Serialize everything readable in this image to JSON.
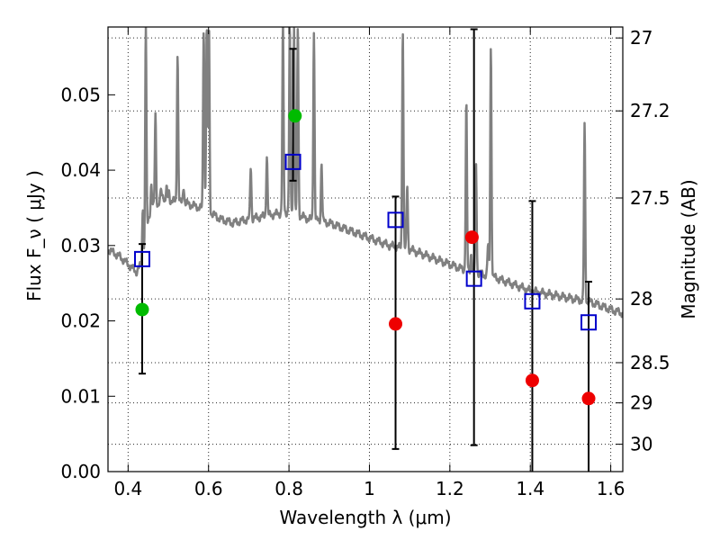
{
  "chart_data": {
    "type": "scatter",
    "xlabel": "Wavelength λ (μm)",
    "ylabel": "Flux F_ν ( μJy )",
    "ylabel_right": "Magnitude (AB)",
    "xlim": [
      0.35,
      1.63
    ],
    "ylim": [
      0.0,
      0.059
    ],
    "x_ticks": [
      0.4,
      0.6,
      0.8,
      1.0,
      1.2,
      1.4,
      1.6
    ],
    "x_tick_labels": [
      "0.4",
      "0.6",
      "0.8",
      "1",
      "1.2",
      "1.4",
      "1.6"
    ],
    "y_ticks": [
      0.0,
      0.01,
      0.02,
      0.03,
      0.04,
      0.05
    ],
    "y_tick_labels": [
      "0.00",
      "0.01",
      "0.02",
      "0.03",
      "0.04",
      "0.05"
    ],
    "right_ticks": [
      27,
      27.2,
      27.5,
      28,
      28.5,
      29,
      30
    ],
    "right_tick_labels": [
      "27",
      "27.2",
      "27.5",
      "28",
      "28.5",
      "29",
      "30"
    ],
    "grid": true,
    "colors": {
      "model": "#808080",
      "model_photometry": "#0000cc",
      "detection": "#00bb00",
      "nondetection": "#ee0000",
      "errorbar": "#000000"
    },
    "series": [
      {
        "marker": "open-square",
        "x": [
          0.435,
          0.81,
          1.065,
          1.26,
          1.405,
          1.545
        ],
        "y": [
          0.0282,
          0.0411,
          0.0334,
          0.0256,
          0.0226,
          0.0198
        ],
        "yerr_low": [
          0.013,
          0.0386,
          0.003,
          0.0035,
          null,
          null
        ],
        "yerr_high": [
          0.0302,
          0.0561,
          0.0365,
          0.0587,
          0.0359,
          0.0252
        ]
      },
      {
        "marker": "filled-circle-green",
        "x": [
          0.435,
          0.815
        ],
        "y": [
          0.0215,
          0.0472
        ]
      },
      {
        "marker": "filled-circle-red",
        "x": [
          1.065,
          1.255,
          1.405,
          1.545
        ],
        "y": [
          0.0196,
          0.0311,
          0.0121,
          0.0097
        ]
      }
    ],
    "model_continuum": {
      "x": [
        0.35,
        0.38,
        0.4,
        0.42,
        0.44,
        0.45,
        0.46,
        0.48,
        0.5,
        0.52,
        0.55,
        0.58,
        0.6,
        0.63,
        0.66,
        0.7,
        0.75,
        0.8,
        0.85,
        0.9,
        0.95,
        1.0,
        1.05,
        1.1,
        1.15,
        1.2,
        1.25,
        1.3,
        1.35,
        1.4,
        1.45,
        1.5,
        1.55,
        1.6,
        1.63
      ],
      "y": [
        0.0295,
        0.0285,
        0.0275,
        0.0265,
        0.028,
        0.0335,
        0.035,
        0.0355,
        0.036,
        0.0358,
        0.0355,
        0.035,
        0.0345,
        0.0335,
        0.033,
        0.0335,
        0.034,
        0.0345,
        0.0335,
        0.033,
        0.032,
        0.031,
        0.03,
        0.0295,
        0.0285,
        0.0275,
        0.0265,
        0.026,
        0.025,
        0.024,
        0.0235,
        0.023,
        0.0225,
        0.0215,
        0.021
      ]
    },
    "model_lines": [
      {
        "x": 0.391,
        "peak": 0.0255
      },
      {
        "x": 0.437,
        "peak": 0.03
      },
      {
        "x": 0.4365,
        "peak": 0.033
      },
      {
        "x": 0.444,
        "peak": 0.059
      },
      {
        "x": 0.4575,
        "peak": 0.038
      },
      {
        "x": 0.468,
        "peak": 0.0475
      },
      {
        "x": 0.482,
        "peak": 0.0375
      },
      {
        "x": 0.487,
        "peak": 0.037
      },
      {
        "x": 0.4955,
        "peak": 0.0375
      },
      {
        "x": 0.5015,
        "peak": 0.0372
      },
      {
        "x": 0.523,
        "peak": 0.0555
      },
      {
        "x": 0.538,
        "peak": 0.038
      },
      {
        "x": 0.588,
        "peak": 0.059
      },
      {
        "x": 0.5955,
        "peak": 0.059
      },
      {
        "x": 0.601,
        "peak": 0.059
      },
      {
        "x": 0.705,
        "peak": 0.0405
      },
      {
        "x": 0.745,
        "peak": 0.042
      },
      {
        "x": 0.785,
        "peak": 0.059
      },
      {
        "x": 0.802,
        "peak": 0.059
      },
      {
        "x": 0.8125,
        "peak": 0.059
      },
      {
        "x": 0.822,
        "peak": 0.059
      },
      {
        "x": 0.862,
        "peak": 0.0585
      },
      {
        "x": 0.881,
        "peak": 0.041
      },
      {
        "x": 1.083,
        "peak": 0.059
      },
      {
        "x": 1.094,
        "peak": 0.038
      },
      {
        "x": 1.241,
        "peak": 0.049
      },
      {
        "x": 1.253,
        "peak": 0.029
      },
      {
        "x": 1.265,
        "peak": 0.041
      },
      {
        "x": 1.295,
        "peak": 0.03
      },
      {
        "x": 1.302,
        "peak": 0.0565
      },
      {
        "x": 1.535,
        "peak": 0.046
      }
    ]
  }
}
